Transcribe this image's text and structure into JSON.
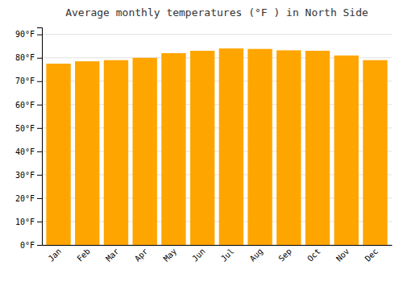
{
  "chart_data": {
    "type": "bar",
    "title": "Average monthly temperatures (°F ) in North Side",
    "categories": [
      "Jan",
      "Feb",
      "Mar",
      "Apr",
      "May",
      "Jun",
      "Jul",
      "Aug",
      "Sep",
      "Oct",
      "Nov",
      "Dec"
    ],
    "values": [
      77.5,
      78.5,
      79.0,
      80.0,
      82.0,
      83.0,
      84.0,
      83.8,
      83.2,
      83.0,
      81.0,
      79.0
    ],
    "color": "#FFA500",
    "ylim": [
      0,
      93
    ],
    "yticks": [
      {
        "value": 0,
        "label": "0°F"
      },
      {
        "value": 10,
        "label": "10°F"
      },
      {
        "value": 20,
        "label": "20°F"
      },
      {
        "value": 30,
        "label": "30°F"
      },
      {
        "value": 40,
        "label": "40°F"
      },
      {
        "value": 50,
        "label": "50°F"
      },
      {
        "value": 60,
        "label": "60°F"
      },
      {
        "value": 70,
        "label": "70°F"
      },
      {
        "value": 80,
        "label": "80°F"
      },
      {
        "value": 90,
        "label": "90°F"
      }
    ],
    "grid": true
  }
}
